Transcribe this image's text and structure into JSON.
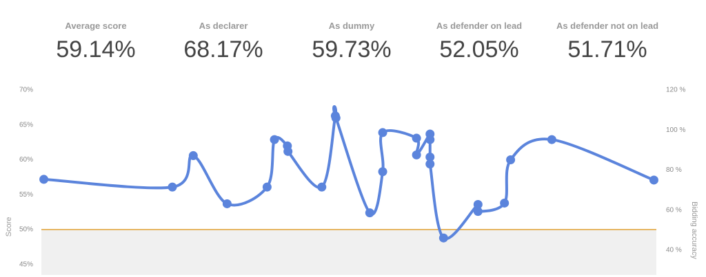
{
  "stats": [
    {
      "label": "Average score",
      "value": "59.14%"
    },
    {
      "label": "As declarer",
      "value": "68.17%"
    },
    {
      "label": "As dummy",
      "value": "59.73%"
    },
    {
      "label": "As defender on lead",
      "value": "52.05%"
    },
    {
      "label": "As defender not on lead",
      "value": "51.71%"
    }
  ],
  "chart_data": {
    "type": "line",
    "y_label": "Score",
    "y2_label": "Bidding accuracy",
    "x": [
      0.4,
      21.3,
      24.7,
      30.2,
      36.7,
      37.9,
      40.0,
      40.1,
      45.6,
      47.8,
      47.9,
      53.4,
      55.5,
      55.5,
      61.0,
      61.0,
      63.2,
      63.2,
      63.2,
      63.2,
      65.4,
      71.0,
      71.0,
      75.3,
      76.3,
      83.0,
      99.6
    ],
    "xlim": [
      0,
      100
    ],
    "series": [
      {
        "name": "Score",
        "color": "#5b84dc",
        "values": [
          57.2,
          56.1,
          60.6,
          53.7,
          56.1,
          62.9,
          62.0,
          61.2,
          56.1,
          66.3,
          66.0,
          52.4,
          58.3,
          63.9,
          63.1,
          60.7,
          63.7,
          62.9,
          60.4,
          59.4,
          48.8,
          53.6,
          52.6,
          53.8,
          60.0,
          62.9,
          57.1
        ]
      }
    ],
    "ylim": [
      43.5,
      70
    ],
    "yticks": [
      {
        "value": 45,
        "label": "45%"
      },
      {
        "value": 50,
        "label": "50%"
      },
      {
        "value": 55,
        "label": "55%"
      },
      {
        "value": 60,
        "label": "60%"
      },
      {
        "value": 65,
        "label": "65%"
      },
      {
        "value": 70,
        "label": "70%"
      }
    ],
    "y2lim": [
      27.6,
      120
    ],
    "y2ticks": [
      {
        "value": 40,
        "label": "40 %"
      },
      {
        "value": 60,
        "label": "60 %"
      },
      {
        "value": 80,
        "label": "80 %"
      },
      {
        "value": 100,
        "label": "100 %"
      },
      {
        "value": 120,
        "label": "120 %"
      }
    ],
    "threshold": 50,
    "threshold_color": "#e0a030"
  }
}
